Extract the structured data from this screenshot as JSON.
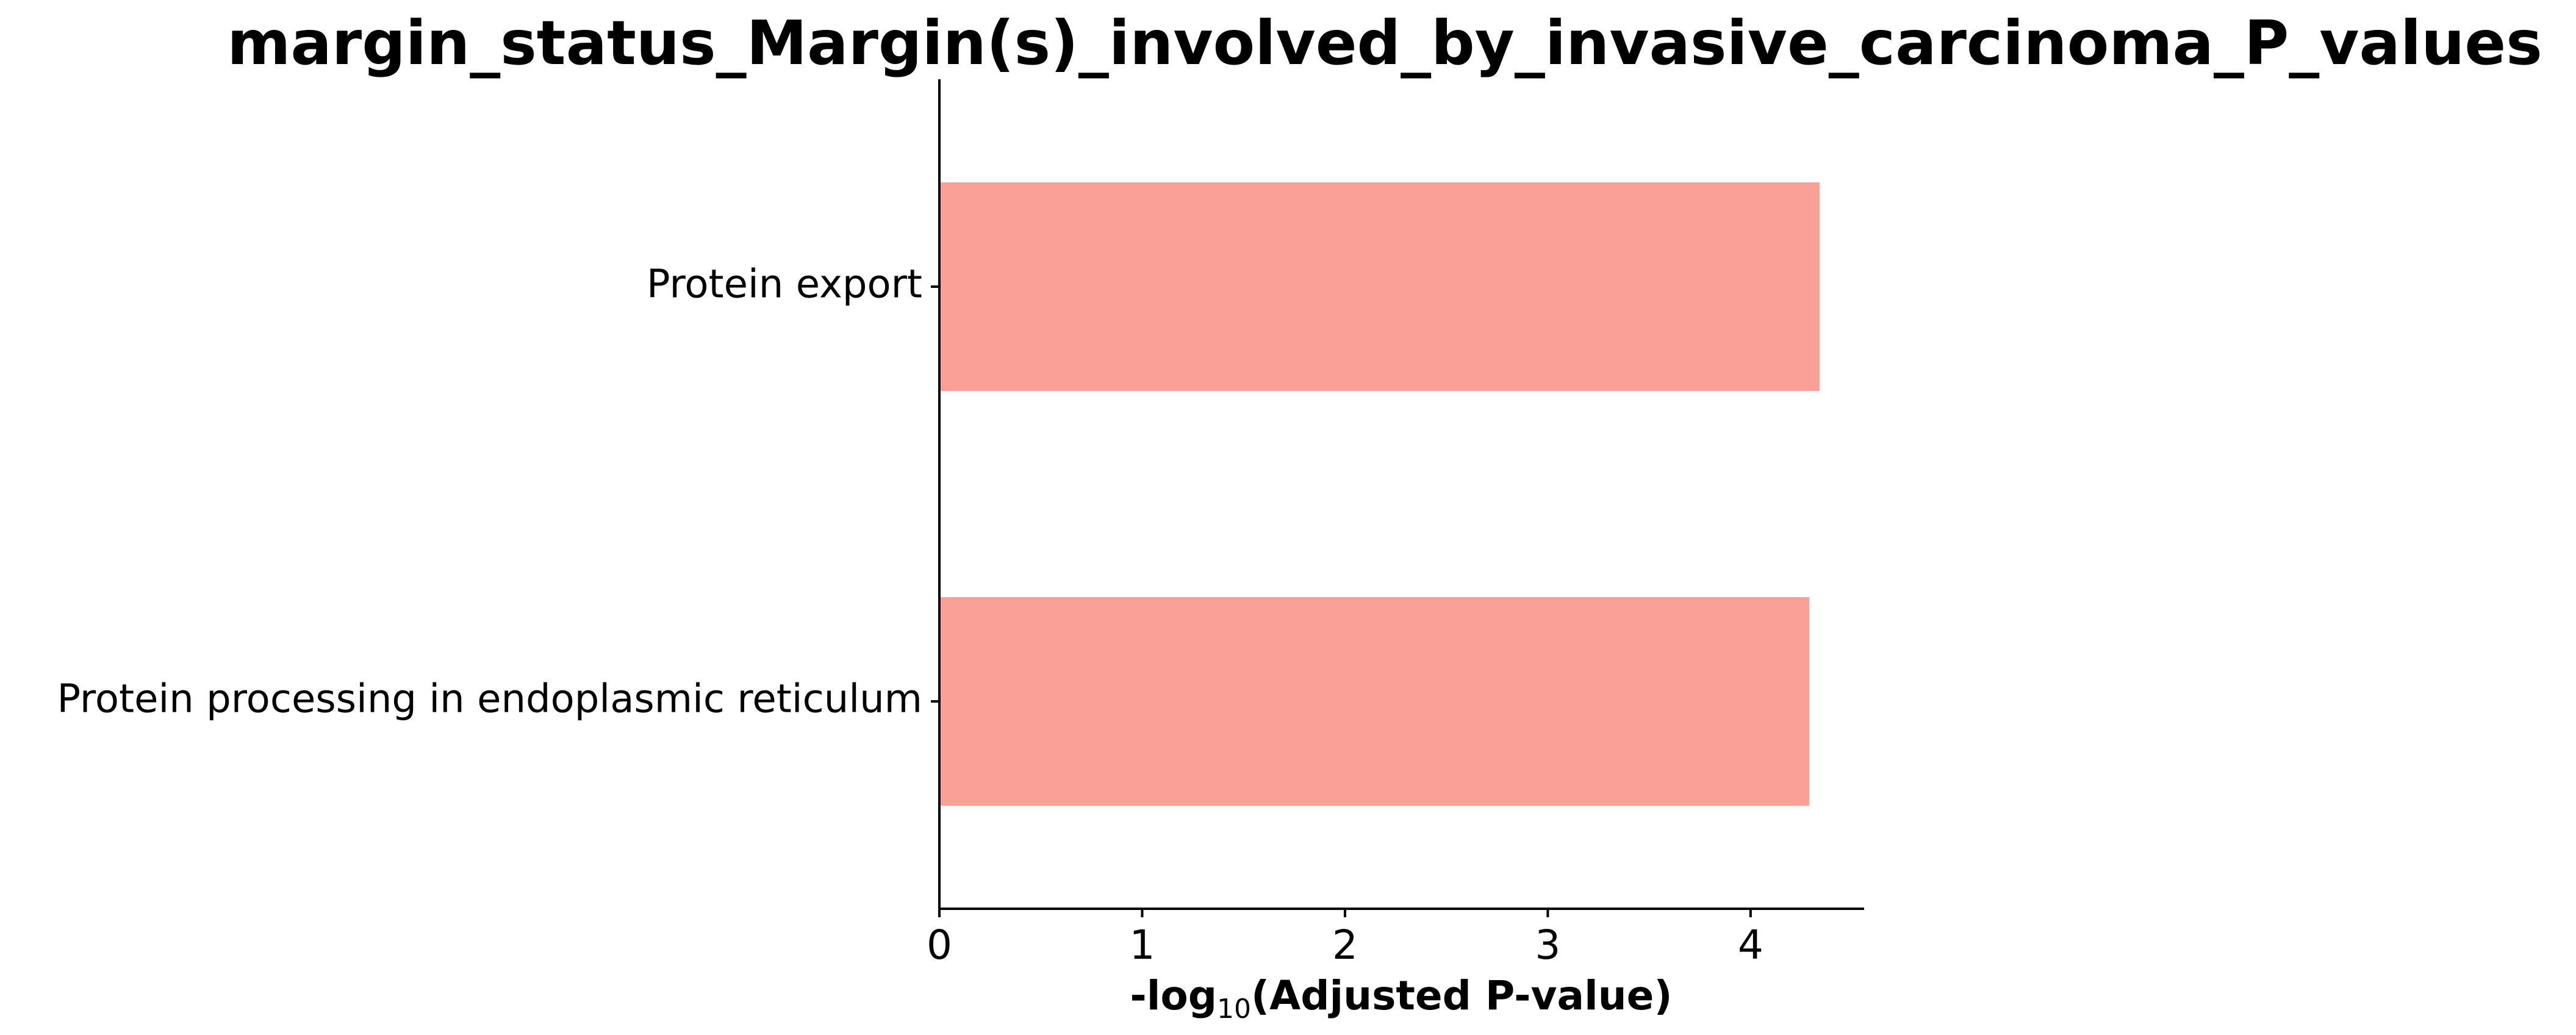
{
  "chart_data": {
    "type": "bar",
    "orientation": "horizontal",
    "title": "margin_status_Margin(s)_involved_by_invasive_carcinoma_P_values",
    "xlabel": {
      "prefix": "-log",
      "subscript": "10",
      "suffix": "(Adjusted P-value)"
    },
    "ylabel": "",
    "categories": [
      "Protein export",
      "Protein processing in endoplasmic reticulum"
    ],
    "values": [
      4.34,
      4.29
    ],
    "xlim": [
      0,
      4.56
    ],
    "xticks": [
      0,
      1,
      2,
      3,
      4
    ],
    "grid": false,
    "bar_color": "#FAA096",
    "axis_color": "#000000"
  }
}
